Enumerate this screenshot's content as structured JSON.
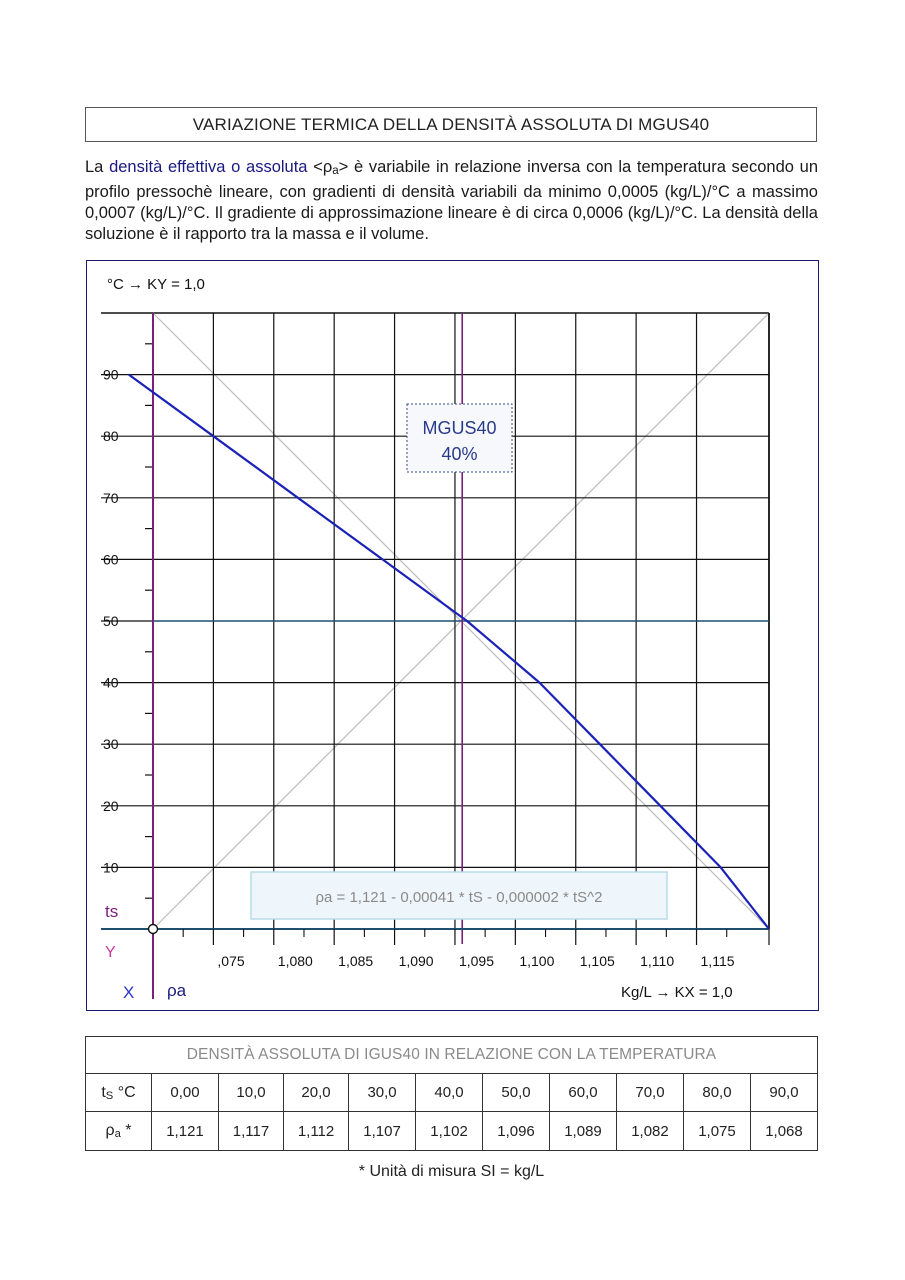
{
  "page": {
    "title": "VARIAZIONE TERMICA DELLA DENSITÀ ASSOLUTA DI MGUS40",
    "intro": {
      "p1": "La",
      "highlight": "densità effettiva o assoluta",
      "p2": "<ρ",
      "p2_sub": "a",
      "p3": "> è variabile in relazione inversa con la temperatura secondo un profilo pressochè lineare, con gradienti di densità variabili da minimo 0,0005 (kg/L)/°C a massimo 0,0007 (kg/L)/°C. Il gradiente di approssimazione lineare è di circa 0,0006 (kg/L)/°C. La densità della soluzione è il rapporto tra la massa e il volume."
    },
    "footnote": "* Unità di misura SI = kg/L"
  },
  "chart_data": {
    "type": "line",
    "y_axis_header": "°C  →  KY = 1,0",
    "x_axis_header": "Kg/L  →  KX = 1,0",
    "axis_marks": {
      "ts": "ts",
      "y": "Y",
      "x": "X",
      "rho": "ρa"
    },
    "box_label": [
      "MGUS40",
      "40%"
    ],
    "formula": "ρa = 1,121 - 0,00041 * tS - 0,000002 * tS^2",
    "xlim": [
      1.07,
      1.121
    ],
    "ylim": [
      0,
      100
    ],
    "x_tick_labels": [
      {
        "x": 1.075,
        "label": ",075"
      },
      {
        "x": 1.08,
        "label": "1,080"
      },
      {
        "x": 1.085,
        "label": "1,085"
      },
      {
        "x": 1.09,
        "label": "1,090"
      },
      {
        "x": 1.095,
        "label": "1,095"
      },
      {
        "x": 1.1,
        "label": "1,100"
      },
      {
        "x": 1.105,
        "label": "1,105"
      },
      {
        "x": 1.11,
        "label": "1,110"
      },
      {
        "x": 1.115,
        "label": "1,115"
      }
    ],
    "y_tick_labels": [
      "10",
      "20",
      "30",
      "40",
      "50",
      "60",
      "70",
      "80",
      "90"
    ],
    "y_tick_values": [
      10,
      20,
      30,
      40,
      50,
      60,
      70,
      80,
      90
    ],
    "grid": true,
    "highlight_x": 1.0956,
    "highlight_y": 50,
    "series": [
      {
        "x": [
          1.121,
          1.117,
          1.112,
          1.107,
          1.102,
          1.096,
          1.089,
          1.082,
          1.075,
          1.068
        ],
        "y": [
          0,
          10,
          20,
          30,
          40,
          50,
          60,
          70,
          80,
          90
        ],
        "color": "#1a22b8"
      }
    ],
    "colors": {
      "curve": "#1a22b8",
      "purple": "#7b1f7a",
      "teal": "#1f4f6e",
      "diagonal": "#bdbdbd",
      "grid": "#111111",
      "frame": "#1a1a6e"
    }
  },
  "table": {
    "caption": "DENSITÀ ASSOLUTA DI IGUS40 IN RELAZIONE CON LA TEMPERATURA",
    "row1_head": "ts °C",
    "row1_head_main": "t",
    "row1_head_sub": "S",
    "row1_head_tail": " °C",
    "row2_head_main": "ρ",
    "row2_head_sub": "a",
    "row2_head_tail": " *",
    "temps": [
      "0,00",
      "10,0",
      "20,0",
      "30,0",
      "40,0",
      "50,0",
      "60,0",
      "70,0",
      "80,0",
      "90,0"
    ],
    "densities": [
      "1,121",
      "1,117",
      "1,112",
      "1,107",
      "1,102",
      "1,096",
      "1,089",
      "1,082",
      "1,075",
      "1,068"
    ]
  }
}
